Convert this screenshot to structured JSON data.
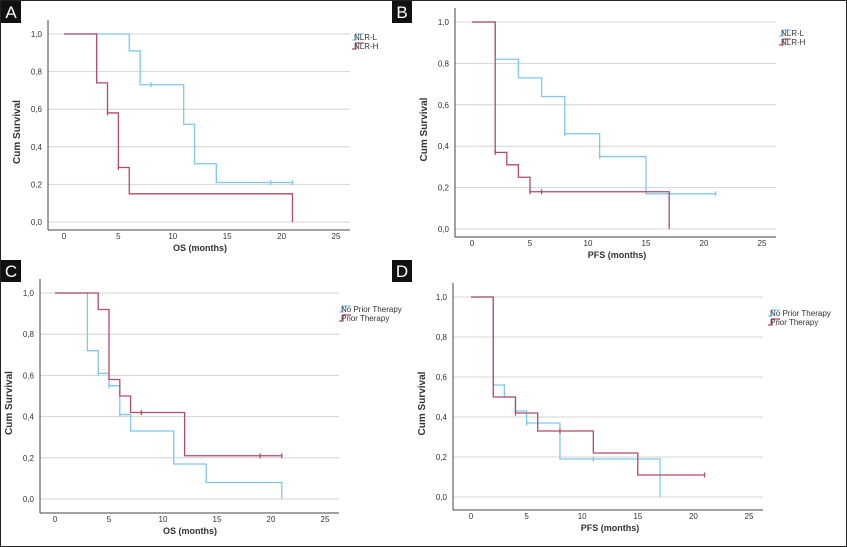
{
  "colors": {
    "low": "#7ec8ec",
    "high": "#b24a68",
    "grid": "#d4d4d4",
    "axis": "#444444",
    "panelLabelBg": "#111111"
  },
  "chart_data": [
    {
      "panel": "A",
      "type": "line",
      "title": "",
      "step": true,
      "xlabel": "OS (months)",
      "ylabel": "Cum Survival",
      "xlim": [
        0,
        25
      ],
      "ylim": [
        0,
        1
      ],
      "xticks": [
        "0",
        "5",
        "10",
        "15",
        "20",
        "25"
      ],
      "yticks": [
        "0,0",
        "0,2",
        "0,4",
        "0,6",
        "0,8",
        "1,0"
      ],
      "legend_position": "top-right",
      "series": [
        {
          "name": "NLR-L",
          "colorKey": "low",
          "steps": [
            [
              0,
              1
            ],
            [
              6,
              0.91
            ],
            [
              7,
              0.73
            ],
            [
              11,
              0.52
            ],
            [
              12,
              0.31
            ],
            [
              14,
              0.21
            ]
          ],
          "end": 21,
          "censored": [
            [
              8,
              0.73
            ],
            [
              19,
              0.21
            ],
            [
              21,
              0.21
            ]
          ]
        },
        {
          "name": "NLR-H",
          "colorKey": "high",
          "steps": [
            [
              0,
              1
            ],
            [
              3,
              0.74
            ],
            [
              4,
              0.58
            ],
            [
              5,
              0.29
            ],
            [
              6,
              0.15
            ],
            [
              21,
              0
            ]
          ],
          "end": 21,
          "censored": [
            [
              4,
              0.58
            ],
            [
              5,
              0.29
            ]
          ]
        }
      ]
    },
    {
      "panel": "B",
      "type": "line",
      "title": "",
      "step": true,
      "xlabel": "PFS (months)",
      "ylabel": "Cum Survival",
      "xlim": [
        0,
        25
      ],
      "ylim": [
        0,
        1
      ],
      "xticks": [
        "0",
        "5",
        "10",
        "15",
        "20",
        "25"
      ],
      "yticks": [
        "0,0",
        "0,2",
        "0,4",
        "0,6",
        "0,8",
        "1,0"
      ],
      "legend_position": "top-right",
      "series": [
        {
          "name": "NLR-L",
          "colorKey": "low",
          "steps": [
            [
              0,
              1
            ],
            [
              2,
              0.82
            ],
            [
              4,
              0.73
            ],
            [
              6,
              0.64
            ],
            [
              8,
              0.46
            ],
            [
              11,
              0.35
            ],
            [
              15,
              0.17
            ]
          ],
          "end": 21,
          "censored": [
            [
              8,
              0.46
            ],
            [
              11,
              0.35
            ],
            [
              21,
              0.17
            ]
          ]
        },
        {
          "name": "NLR-H",
          "colorKey": "high",
          "steps": [
            [
              0,
              1
            ],
            [
              2,
              0.37
            ],
            [
              3,
              0.31
            ],
            [
              4,
              0.25
            ],
            [
              5,
              0.18
            ],
            [
              17,
              0
            ]
          ],
          "end": 17,
          "censored": [
            [
              2,
              0.37
            ],
            [
              5,
              0.18
            ],
            [
              6,
              0.18
            ]
          ]
        }
      ]
    },
    {
      "panel": "C",
      "type": "line",
      "title": "",
      "step": true,
      "xlabel": "OS (months)",
      "ylabel": "Cum Survival",
      "xlim": [
        0,
        25
      ],
      "ylim": [
        0,
        1
      ],
      "xticks": [
        "0",
        "5",
        "10",
        "15",
        "20",
        "25"
      ],
      "yticks": [
        "0,0",
        "0,2",
        "0,4",
        "0,6",
        "0,8",
        "1,0"
      ],
      "legend_position": "top-right",
      "series": [
        {
          "name": "No Prior Therapy",
          "colorKey": "low",
          "steps": [
            [
              0,
              1
            ],
            [
              3,
              0.72
            ],
            [
              4,
              0.61
            ],
            [
              5,
              0.55
            ],
            [
              6,
              0.41
            ],
            [
              7,
              0.33
            ],
            [
              11,
              0.17
            ],
            [
              14,
              0.08
            ],
            [
              21,
              0
            ]
          ],
          "end": 21,
          "censored": [
            [
              4,
              0.61
            ],
            [
              5,
              0.55
            ],
            [
              6,
              0.41
            ]
          ]
        },
        {
          "name": "Prior Therapy",
          "colorKey": "high",
          "steps": [
            [
              0,
              1
            ],
            [
              4,
              0.92
            ],
            [
              5,
              0.58
            ],
            [
              6,
              0.5
            ],
            [
              7,
              0.42
            ],
            [
              12,
              0.21
            ]
          ],
          "end": 21,
          "censored": [
            [
              8,
              0.42
            ],
            [
              19,
              0.21
            ],
            [
              21,
              0.21
            ]
          ]
        }
      ]
    },
    {
      "panel": "D",
      "type": "line",
      "title": "",
      "step": true,
      "xlabel": "PFS (months)",
      "ylabel": "Cum Survival",
      "xlim": [
        0,
        25
      ],
      "ylim": [
        0,
        1
      ],
      "xticks": [
        "0",
        "5",
        "10",
        "15",
        "20",
        "25"
      ],
      "yticks": [
        "0,0",
        "0,2",
        "0,4",
        "0,6",
        "0,8",
        "1,0"
      ],
      "legend_position": "top-right",
      "series": [
        {
          "name": "No Prior Therapy",
          "colorKey": "low",
          "steps": [
            [
              0,
              1
            ],
            [
              2,
              0.56
            ],
            [
              3,
              0.5
            ],
            [
              4,
              0.43
            ],
            [
              5,
              0.37
            ],
            [
              8,
              0.19
            ],
            [
              17,
              0
            ]
          ],
          "end": 17,
          "censored": [
            [
              5,
              0.37
            ],
            [
              11,
              0.19
            ]
          ]
        },
        {
          "name": "Prior Therapy",
          "colorKey": "high",
          "steps": [
            [
              0,
              1
            ],
            [
              2,
              0.5
            ],
            [
              4,
              0.42
            ],
            [
              6,
              0.33
            ],
            [
              11,
              0.22
            ],
            [
              15,
              0.11
            ]
          ],
          "end": 21,
          "censored": [
            [
              4,
              0.42
            ],
            [
              8,
              0.33
            ],
            [
              21,
              0.11
            ]
          ]
        }
      ]
    }
  ]
}
